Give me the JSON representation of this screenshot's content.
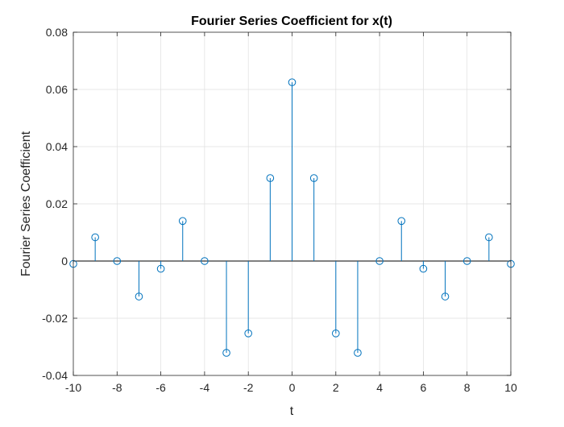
{
  "chart_data": {
    "type": "stem",
    "title": "Fourier Series Coefficient for x(t)",
    "xlabel": "t",
    "ylabel": "Fourier Series Coefficient",
    "xlim": [
      -10,
      10
    ],
    "ylim": [
      -0.04,
      0.08
    ],
    "xticks": [
      -10,
      -8,
      -6,
      -4,
      -2,
      0,
      2,
      4,
      6,
      8,
      10
    ],
    "yticks": [
      -0.04,
      -0.02,
      0,
      0.02,
      0.04,
      0.06,
      0.08
    ],
    "xtick_labels": [
      "-10",
      "-8",
      "-6",
      "-4",
      "-2",
      "0",
      "2",
      "4",
      "6",
      "8",
      "10"
    ],
    "ytick_labels": [
      "-0.04",
      "-0.02",
      "0",
      "0.02",
      "0.04",
      "0.06",
      "0.08"
    ],
    "grid": true,
    "color": "#0072BD",
    "x": [
      -10,
      -9,
      -8,
      -7,
      -6,
      -5,
      -4,
      -3,
      -2,
      -1,
      0,
      1,
      2,
      3,
      4,
      5,
      6,
      7,
      8,
      9,
      10
    ],
    "y": [
      -0.001,
      0.0083,
      0,
      -0.0124,
      -0.0027,
      0.014,
      0,
      -0.0321,
      -0.0253,
      0.029,
      0.0625,
      0.029,
      -0.0253,
      -0.0321,
      0,
      0.014,
      -0.0027,
      -0.0124,
      0,
      0.0083,
      -0.001
    ]
  }
}
